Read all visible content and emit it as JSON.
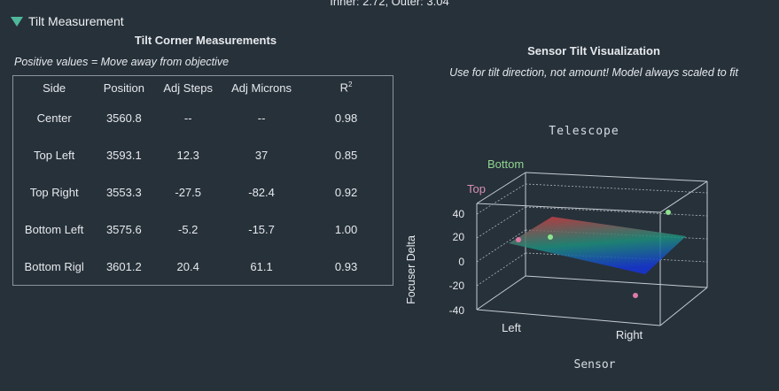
{
  "status": {
    "text": "Inner: 2.72, Outer: 3.04"
  },
  "section": {
    "label": "Tilt Measurement"
  },
  "left": {
    "title": "Tilt Corner Measurements",
    "note": "Positive values = Move away from objective",
    "table": {
      "headers": [
        "Side",
        "Position",
        "Adj Steps",
        "Adj Microns",
        "R"
      ],
      "r2_superscript": "2",
      "rows": [
        {
          "side": "Center",
          "position": "3560.8",
          "steps": "--",
          "microns": "--",
          "r2": "0.98"
        },
        {
          "side": "Top Left",
          "position": "3593.1",
          "steps": "12.3",
          "microns": "37",
          "r2": "0.85"
        },
        {
          "side": "Top Right",
          "position": "3553.3",
          "steps": "-27.5",
          "microns": "-82.4",
          "r2": "0.92"
        },
        {
          "side": "Bottom Left",
          "position": "3575.6",
          "steps": "-5.2",
          "microns": "-15.7",
          "r2": "1.00"
        },
        {
          "side": "Bottom Rigl",
          "position": "3601.2",
          "steps": "20.4",
          "microns": "61.1",
          "r2": "0.93"
        }
      ]
    }
  },
  "right": {
    "title": "Sensor Tilt Visualization",
    "note": "Use for tilt direction, not amount! Model always scaled to fit",
    "plot": {
      "title": "Telescope",
      "xlabel": "Sensor",
      "ylabel": "Focuser Delta",
      "axis_left": "Left",
      "axis_right": "Right",
      "axis_bottom": "Bottom",
      "axis_top": "Top",
      "ticks": [
        "40",
        "20",
        "0",
        "-20",
        "-40"
      ],
      "colors": {
        "bottom_label": "#8fd48f",
        "top_label": "#d88fb8",
        "dot_green": "#8fe38f",
        "dot_pink": "#e07aa8"
      }
    }
  }
}
